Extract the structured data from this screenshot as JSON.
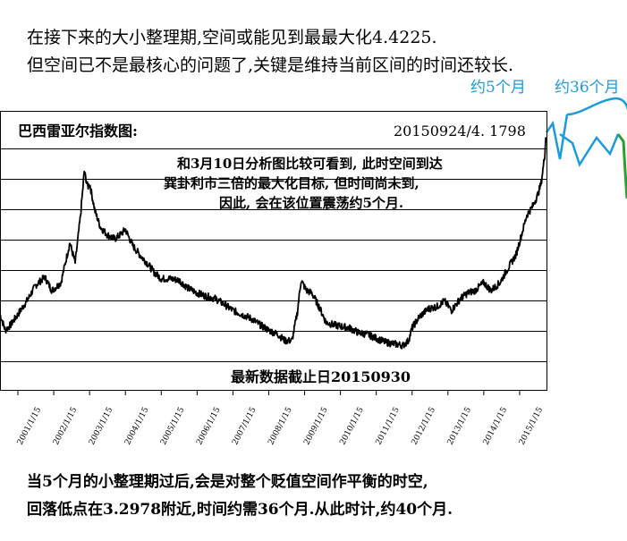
{
  "top_note": {
    "line1": "在接下来的大小整理期,空间或能见到最最大化4.4225.",
    "line2": "但空间已不是最核心的问题了,关键是维持当前区间的时间还较长."
  },
  "bottom_note": {
    "line1": "当5个月的小整理期过后,会是对整个贬值空间作平衡的时空,",
    "line2": "回落低点在3.2978附近,时间约需36个月.从此时计,约40个月."
  },
  "colors": {
    "price": "#000000",
    "grid": "#000000",
    "forecast_5m": "#1a9ae0",
    "forecast_36m": "#1a9ae0",
    "forecast_fall": "#2aa030"
  },
  "chart_data": {
    "type": "line",
    "title": "巴西雷亚尔指数图:",
    "latest_label": "20150924/4. 1798",
    "footer": "最新数据截止日20150930",
    "annotation": {
      "line1": "和3月10日分析图比较可看到, 此时空间到达",
      "line2": "巽卦利市三倍的最大化目标, 但时间尚未到,",
      "line3": "因此, 会在该位置震荡约5个月."
    },
    "forecast_labels": {
      "five_months": "约5个月",
      "thirty_six_months": "约36个月"
    },
    "x_tick_labels": [
      "2001/1/15",
      "2002/1/15",
      "2003/1/15",
      "2004/1/15",
      "2005/1/15",
      "2006/1/15",
      "2007/1/15",
      "2008/1/15",
      "2009/1/15",
      "2010/1/15",
      "2011/1/15",
      "2012/1/15",
      "2013/1/15",
      "2014/1/15",
      "2015/1/15"
    ],
    "x_tick_years": [
      2001,
      2002,
      2003,
      2004,
      2005,
      2006,
      2007,
      2008,
      2009,
      2010,
      2011,
      2012,
      2013,
      2014,
      2015
    ],
    "xlim": [
      2000.5,
      2015.75
    ],
    "ylim": [
      1.0,
      4.4
    ],
    "grid": true,
    "series": [
      {
        "x": [
          2000.5,
          2000.65,
          2000.8,
          2001.0,
          2001.25,
          2001.5,
          2001.75,
          2001.95,
          2002.2,
          2002.45,
          2002.6,
          2002.75,
          2002.85,
          2002.95,
          2003.0,
          2003.15,
          2003.3,
          2003.5,
          2003.7,
          2003.85,
          2004.0,
          2004.2,
          2004.4,
          2004.6,
          2004.8,
          2005.0,
          2005.25,
          2005.5,
          2005.75,
          2006.0,
          2006.25,
          2006.5,
          2006.75,
          2007.0,
          2007.25,
          2007.5,
          2007.75,
          2008.0,
          2008.25,
          2008.45,
          2008.65,
          2008.8,
          2008.9,
          2009.05,
          2009.2,
          2009.4,
          2009.6,
          2009.8,
          2010.0,
          2010.25,
          2010.5,
          2010.75,
          2011.0,
          2011.25,
          2011.5,
          2011.75,
          2011.9,
          2012.0,
          2012.2,
          2012.45,
          2012.7,
          2012.9,
          2013.1,
          2013.35,
          2013.55,
          2013.75,
          2014.0,
          2014.2,
          2014.45,
          2014.7,
          2014.9,
          2015.05,
          2015.2,
          2015.35,
          2015.5,
          2015.6,
          2015.7,
          2015.73
        ],
        "y": [
          1.95,
          1.75,
          1.82,
          1.95,
          2.12,
          2.32,
          2.42,
          2.25,
          2.35,
          2.85,
          2.6,
          3.2,
          3.75,
          3.55,
          3.6,
          3.25,
          3.05,
          2.95,
          2.9,
          2.95,
          3.02,
          2.82,
          2.7,
          2.6,
          2.48,
          2.4,
          2.4,
          2.38,
          2.28,
          2.22,
          2.18,
          2.15,
          2.08,
          2.0,
          1.95,
          1.9,
          1.82,
          1.75,
          1.7,
          1.62,
          1.62,
          1.98,
          2.38,
          2.25,
          2.22,
          2.05,
          1.85,
          1.82,
          1.8,
          1.78,
          1.72,
          1.7,
          1.65,
          1.6,
          1.58,
          1.56,
          1.62,
          1.78,
          1.92,
          2.02,
          2.05,
          2.12,
          2.0,
          2.15,
          2.22,
          2.25,
          2.35,
          2.25,
          2.35,
          2.55,
          2.7,
          2.95,
          3.2,
          3.3,
          3.45,
          3.6,
          3.95,
          4.18
        ]
      }
    ]
  }
}
